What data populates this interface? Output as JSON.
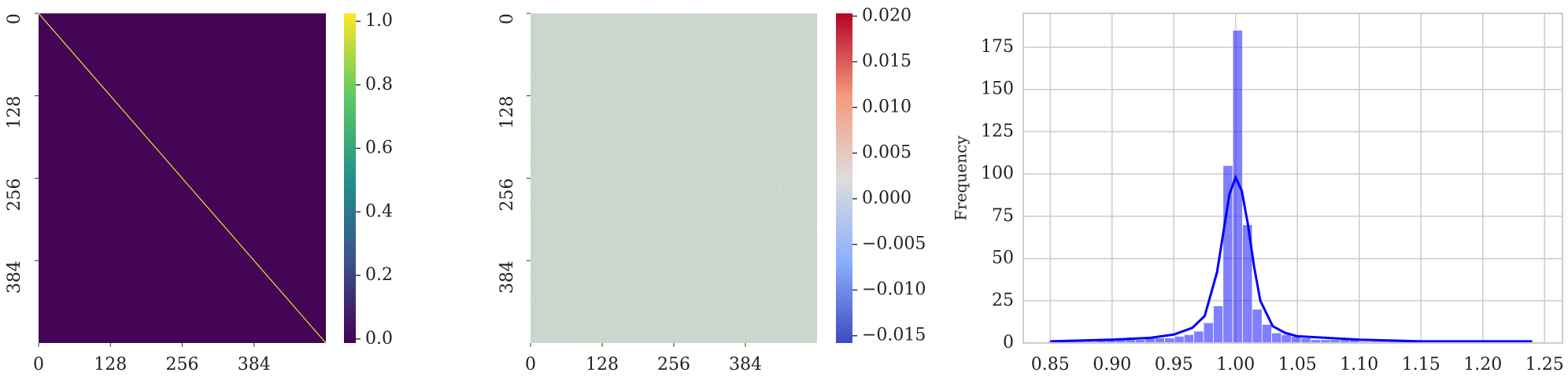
{
  "chart_data": [
    {
      "type": "heatmap",
      "colormap": "viridis",
      "xlim": [
        0,
        512
      ],
      "ylim": [
        0,
        512
      ],
      "xticks": [
        0,
        128,
        256,
        384
      ],
      "yticks": [
        0,
        128,
        256,
        384
      ],
      "diagonal_value": 1,
      "off_diagonal_value": 0,
      "colorbar": {
        "lim": [
          -0.013,
          1.025
        ],
        "ticks": [
          {
            "value": 0,
            "label": "0.0"
          },
          {
            "value": 0.2,
            "label": "0.2"
          },
          {
            "value": 0.4,
            "label": "0.4"
          },
          {
            "value": 0.6,
            "label": "0.6"
          },
          {
            "value": 0.8,
            "label": "0.8"
          },
          {
            "value": 1,
            "label": "1.0"
          }
        ]
      }
    },
    {
      "type": "heatmap",
      "colormap": "coolwarm",
      "xlim": [
        0,
        512
      ],
      "ylim": [
        0,
        512
      ],
      "xticks": [
        0,
        128,
        256,
        384
      ],
      "yticks": [
        0,
        128,
        256,
        384
      ],
      "colorbar": {
        "lim": [
          -0.0158,
          0.0203
        ],
        "ticks": [
          {
            "value": -0.015,
            "label": "−0.015"
          },
          {
            "value": -0.01,
            "label": "−0.010"
          },
          {
            "value": -0.005,
            "label": "−0.005"
          },
          {
            "value": 0,
            "label": "0.000"
          },
          {
            "value": 0.005,
            "label": "0.005"
          },
          {
            "value": 0.01,
            "label": "0.010"
          },
          {
            "value": 0.015,
            "label": "0.015"
          },
          {
            "value": 0.02,
            "label": "0.020"
          }
        ]
      }
    },
    {
      "type": "histogram",
      "color": "#0000ff",
      "ylabel": "Frequency",
      "grid": true,
      "bins": [
        0.848,
        0.8559,
        0.8638,
        0.8716,
        0.8795,
        0.8874,
        0.8953,
        0.9032,
        0.911,
        0.9189,
        0.9268,
        0.9347,
        0.9426,
        0.9504,
        0.9583,
        0.9662,
        0.9741,
        0.982,
        0.9898,
        0.9977,
        1.0056,
        1.0135,
        1.0214,
        1.0292,
        1.0371,
        1.045,
        1.0529,
        1.0608,
        1.0686,
        1.0765,
        1.0844,
        1.0923,
        1.1002,
        1.108,
        1.1159,
        1.1238,
        1.1317,
        1.1396,
        1.1474,
        1.1553,
        1.1632,
        1.1711,
        1.179,
        1.1868,
        1.1947,
        1.2026,
        1.2105,
        1.2184,
        1.2262,
        1.2341,
        1.242
      ],
      "counts": [
        1,
        1,
        1,
        1,
        1,
        2,
        2,
        2,
        2,
        2,
        3,
        3,
        3,
        4,
        5,
        7,
        12,
        22,
        105,
        185,
        70,
        20,
        11,
        6,
        5,
        4,
        3,
        2,
        2,
        2,
        2,
        2,
        1,
        1,
        1,
        1,
        1,
        1,
        1,
        1,
        0,
        0,
        0,
        1,
        1,
        1,
        1,
        1,
        0,
        0
      ],
      "kde": {
        "color": "#0000ff",
        "x": [
          0.85,
          0.9,
          0.93,
          0.95,
          0.965,
          0.975,
          0.985,
          0.99,
          0.995,
          1.0,
          1.005,
          1.01,
          1.015,
          1.02,
          1.03,
          1.04,
          1.05,
          1.1,
          1.15,
          1.2,
          1.24
        ],
        "values": [
          1,
          2,
          3,
          5,
          9,
          16,
          42,
          65,
          88,
          98,
          90,
          70,
          45,
          25,
          10,
          6,
          4,
          2,
          1,
          1,
          1
        ]
      },
      "xlim": [
        0.8282,
        1.2645
      ],
      "ylim": [
        0,
        195
      ],
      "xticks": [
        0.85,
        {
          "value": 0.9,
          "label": "0.90"
        },
        0.95,
        {
          "value": 1,
          "label": "1.00"
        },
        1.05,
        {
          "value": 1.1,
          "label": "1.10"
        },
        1.15,
        {
          "value": 1.2,
          "label": "1.20"
        },
        1.25
      ],
      "yticks": [
        0,
        25,
        50,
        75,
        100,
        125,
        150,
        175
      ]
    }
  ]
}
